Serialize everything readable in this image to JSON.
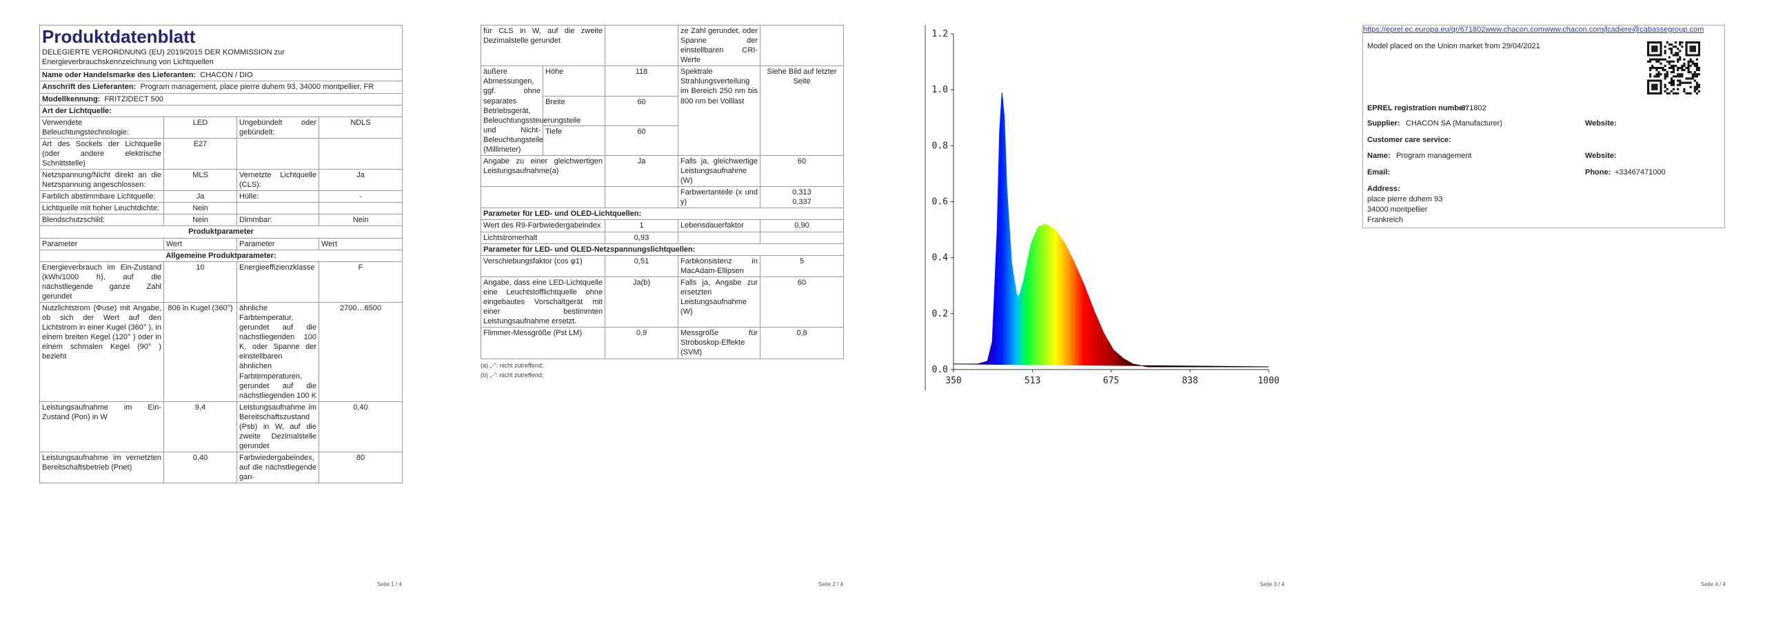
{
  "page1": {
    "title": "Produktdatenblatt",
    "subtitle": "DELEGIERTE VERORDNUNG (EU) 2019/2015 DER KOMMISSION zur Energieverbrauchskennzeichnung von Lichtquellen",
    "supplier_rows": [
      {
        "label": "Name oder Handelsmarke des Lieferanten:",
        "value": "CHACON / DIO"
      },
      {
        "label": "Anschrift des Lieferanten:",
        "value": "Program management, place pierre duhem 93, 34000 montpellier, FR"
      },
      {
        "label": "Modellkennung:",
        "value": "FRITZIDECT 500"
      }
    ],
    "light_source_heading": "Art der Lichtquelle:",
    "light_source_rows": [
      [
        "Verwendete Beleuchtungstechnologie:",
        "LED",
        "Ungebündelt oder gebündelt:",
        "NDLS"
      ],
      [
        "Art des Sockels der Lichtquelle (oder andere elektrische Schnittstelle)",
        "E27",
        null,
        null
      ],
      [
        "Netzspannung/Nicht direkt an die Netzspannung angeschlossen:",
        "MLS",
        "Vernetzte Lichtquelle (CLS):",
        "Ja"
      ],
      [
        "Farblich abstimmbare Lichtquelle:",
        "Ja",
        "Hülle:",
        "-"
      ],
      [
        "Lichtquelle mit hoher Leuchtdichte:",
        "Nein",
        null,
        null
      ],
      [
        "Blendschutzschild:",
        "Nein",
        "Dimmbar:",
        "Nein"
      ]
    ],
    "parameters_heading": "Produktparameter",
    "parameters_header": [
      "Parameter",
      "Wert",
      "Parameter",
      "Wert"
    ],
    "general_heading": "Allgemeine Produktparameter:",
    "general_rows": [
      [
        "Energieverbrauch im Ein-Zustand (kWh/1000 h), auf die nächstliegende ganze Zahl gerundet",
        "10",
        "Energieeffizienzklasse",
        "F"
      ],
      [
        "Nutzlichtstrom (Φuse) mit Angabe, ob sich der Wert auf den Lichtstrom in einer Kugel (360° ), in einem breiten Kegel (120° ) oder in einem schmalen Kegel (90° ) bezieht",
        "806 in Kugel (360°)",
        "ähnliche Farbtemperatur, gerundet auf die nächstliegenden 100 K, oder Spanne der einstellbaren ähnlichen Farbtemperaturen, gerundet auf die nächstliegenden 100 K",
        "2700…6500"
      ],
      [
        "Leistungsaufnahme im Ein-Zustand (Pon) in W",
        "9,4",
        "Leistungsaufnahme im Bereitschaftszustand (Psb) in W, auf die zweite Dezimalstelle gerundet",
        "0,40"
      ],
      [
        "Leistungsaufnahme im vernetzten Bereitschaftsbetrieb (Pnet)",
        "0,40",
        "Farbwiedergabeindex, auf die nächstliegende gan-",
        "80"
      ]
    ],
    "page_number": "Seite 1 / 4"
  },
  "page2": {
    "rows": [
      [
        "für CLS in W, auf die zweite Dezimalstelle gerundet",
        null,
        "ze Zahl gerundet, oder Spanne der einstellbaren CRI-Werte",
        null
      ],
      {
        "label": "äußere Abmessungen, ggf. ohne separates Betriebsgerät, Beleuchtungssteuerungsteile und Nicht-Beleuchtungsteile (Millimeter)",
        "dimensions": [
          {
            "name": "Höhe",
            "value": "118"
          },
          {
            "name": "Breite",
            "value": "60"
          },
          {
            "name": "Tiefe",
            "value": "60"
          }
        ],
        "parameter": "Spektrale Strahlungsverteilung im Bereich 250 nm bis 800 nm bei Volllast",
        "value": "Siehe Bild auf letzter Seite"
      },
      [
        "Angabe zu einer gleichwertigen Leistungsaufnahme(a)",
        "Ja",
        "Falls ja, gleichwertige Leistungsaufnahme (W)",
        "60"
      ],
      [
        null,
        null,
        "Farbwertanteile (x und y)",
        [
          "0,313",
          "0,337"
        ]
      ],
      {
        "heading": "Parameter für LED- und OLED-Lichtquellen:"
      },
      [
        "Wert des R9-Farbwiedergabeindex",
        "1",
        "Lebensdauerfaktor",
        "0,90"
      ],
      [
        "Lichtstromerhalt",
        "0,93",
        null,
        null
      ],
      {
        "heading": "Parameter für LED- und OLED-Netzspannungslichtquellen:"
      },
      [
        "Verschiebungsfaktor (cos φ1)",
        "0,51",
        "Farbkonsistenz in MacAdam-Ellipsen",
        "5"
      ],
      [
        "Angabe, dass eine LED-Lichtquelle eine Leuchtstofflichtquelle ohne eingebautes Vorschaltgerät mit einer bestimmten Leistungsaufnahme ersetzt.",
        "Ja(b)",
        "Falls ja, Angabe zur ersetzten Leistungsaufnahme (W)",
        "60"
      ],
      [
        "Flimmer-Messgröße (Pst LM)",
        "0,9",
        "Messgröße für Stroboskop-Effekte (SVM)",
        "0,8"
      ]
    ],
    "footnotes": [
      "(a) „-“: nicht zutreffend;",
      "(b) „-“: nicht zutreffend;"
    ],
    "page_number": "Seite 2 / 4"
  },
  "chart_data": {
    "type": "area",
    "x": [
      350,
      400,
      420,
      430,
      440,
      445,
      450,
      455,
      460,
      470,
      480,
      485,
      495,
      510,
      525,
      540,
      560,
      580,
      600,
      620,
      640,
      660,
      680,
      700,
      720,
      750,
      800,
      900,
      1000
    ],
    "values": [
      0.02,
      0.02,
      0.03,
      0.1,
      0.5,
      0.85,
      0.99,
      0.9,
      0.65,
      0.38,
      0.27,
      0.26,
      0.32,
      0.45,
      0.51,
      0.52,
      0.5,
      0.45,
      0.38,
      0.3,
      0.21,
      0.13,
      0.07,
      0.04,
      0.02,
      0.01,
      0.01,
      0.01,
      0.01
    ],
    "xlim": [
      350,
      1000
    ],
    "ylim": [
      0,
      1.2
    ],
    "xticks": [
      350,
      513,
      675,
      838,
      1000
    ],
    "yticks": [
      {
        "value": 0,
        "label": "0.0"
      },
      0.2,
      0.4,
      0.6,
      0.8,
      {
        "value": 1,
        "label": "1.0"
      },
      1.2
    ]
  },
  "page3": {
    "page_number": "Seite 3 / 4"
  },
  "page4": {
    "market_note": "Model placed on the Union market from 29/04/2021",
    "eprel_label": "EPREL registration number:",
    "eprel_number": "671802",
    "eprel_url": "https://eprel.ec.europa.eu/qr/671802",
    "supplier_label": "Supplier:",
    "supplier": "CHACON SA (Manufacturer)",
    "website_label": "Website:",
    "website": "www.chacon.com",
    "customer_care_heading": "Customer care service:",
    "name_label": "Name:",
    "name": "Program management",
    "care_website_label": "Website:",
    "care_website": "www.chacon.com",
    "email_label": "Email:",
    "email": "jfcadiere@cabassegroup.com",
    "phone_label": "Phone:",
    "phone": "+33467471000",
    "address_label": "Address:",
    "address_lines": [
      "place pierre duhem 93",
      "34000 montpellier",
      "Frankreich"
    ],
    "page_number": "Seite 4 / 4"
  }
}
